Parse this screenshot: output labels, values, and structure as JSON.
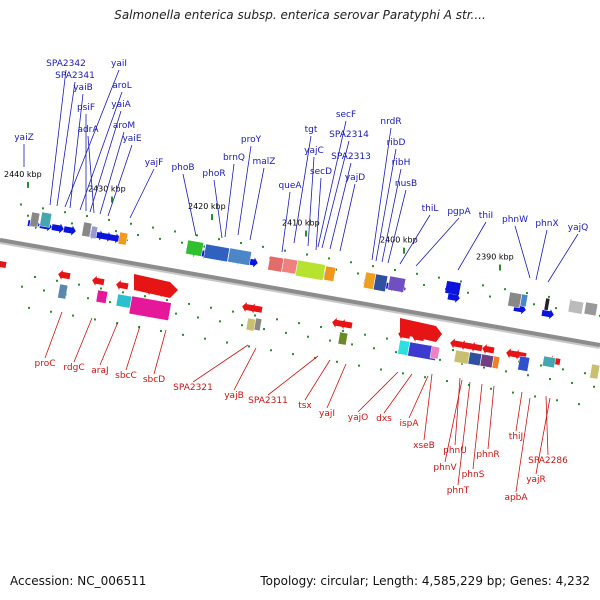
{
  "title": "Salmonella enterica subsp. enterica serovar Paratyphi A str....",
  "footer": {
    "accession": "Accession: NC_006511",
    "topology": "Topology: circular; Length: 4,585,229 bp; Genes: 4,232"
  },
  "colors": {
    "forward_gene": "#0a14dc",
    "reverse_gene": "#e61414",
    "backbone": "#8c8c8c",
    "forward_label": "#1a1ab4",
    "reverse_label": "#c81414",
    "tick_mark": "#2e8b2e"
  },
  "kbp_ticks": [
    "2440 kbp",
    "2430 kbp",
    "2420 kbp",
    "2410 kbp",
    "2400 kbp",
    "2390 kbp"
  ],
  "forward_genes": [
    "SPA2342",
    "SPA2341",
    "yaiI",
    "yaiB",
    "aroL",
    "psiF",
    "yaiA",
    "adrA",
    "aroM",
    "yaiZ",
    "yaiE",
    "yajF",
    "phoB",
    "proY",
    "brnQ",
    "phoR",
    "malZ",
    "tgt",
    "secF",
    "yajC",
    "SPA2314",
    "SPA2313",
    "secD",
    "queA",
    "yajD",
    "nrdR",
    "ribD",
    "ribH",
    "nusB",
    "thiL",
    "pgpA",
    "thiI",
    "phnW",
    "phnX",
    "yajQ"
  ],
  "reverse_genes": [
    "proC",
    "rdgC",
    "araJ",
    "sbcC",
    "sbcD",
    "SPA2321",
    "yajB",
    "SPA2311",
    "tsx",
    "yajI",
    "yajO",
    "dxs",
    "ispA",
    "xseB",
    "phnU",
    "phnV",
    "phnT",
    "phnS",
    "phnR",
    "thiJ",
    "SPA2286",
    "yajR",
    "apbA"
  ]
}
